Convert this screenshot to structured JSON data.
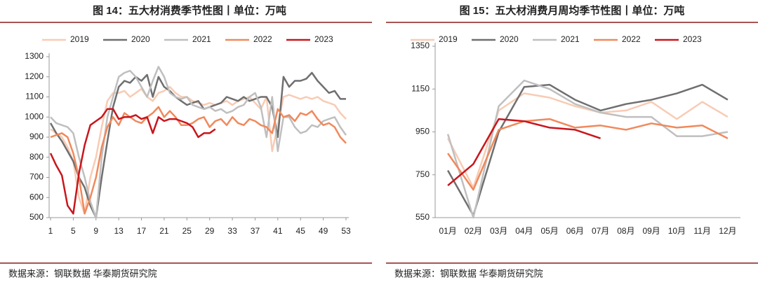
{
  "chart_data": [
    {
      "type": "line",
      "title": "图 14：五大材消费季节性图丨单位：万吨",
      "source": "数据来源：钢联数据 华泰期货研究院",
      "x": [
        1,
        2,
        3,
        4,
        5,
        6,
        7,
        8,
        9,
        10,
        11,
        12,
        13,
        14,
        15,
        16,
        17,
        18,
        19,
        20,
        21,
        22,
        23,
        24,
        25,
        26,
        27,
        28,
        29,
        30,
        31,
        32,
        33,
        34,
        35,
        36,
        37,
        38,
        39,
        40,
        41,
        42,
        43,
        44,
        45,
        46,
        47,
        48,
        49,
        50,
        51,
        52,
        53
      ],
      "xlim": [
        1,
        53
      ],
      "xticks": [
        1,
        5,
        9,
        13,
        17,
        21,
        25,
        29,
        33,
        37,
        41,
        45,
        49,
        53
      ],
      "ylim": [
        500,
        1300
      ],
      "yticks": [
        500,
        600,
        700,
        800,
        900,
        1000,
        1100,
        1200,
        1300
      ],
      "series": [
        {
          "name": "2019",
          "color": "#f8cbb4",
          "values": [
            940,
            920,
            900,
            850,
            780,
            600,
            520,
            700,
            800,
            950,
            1080,
            1120,
            1120,
            1130,
            1100,
            1120,
            1140,
            1100,
            1080,
            1120,
            1130,
            1150,
            1120,
            1100,
            1100,
            1080,
            1070,
            1060,
            1070,
            1060,
            1070,
            1080,
            1060,
            1080,
            1090,
            1100,
            1070,
            1040,
            1100,
            830,
            960,
            1100,
            1110,
            1100,
            1090,
            1100,
            1090,
            1100,
            1080,
            1070,
            1060,
            1020,
            990
          ]
        },
        {
          "name": "2020",
          "color": "#6f6f6f",
          "values": [
            970,
            920,
            880,
            830,
            780,
            700,
            650,
            560,
            500,
            700,
            880,
            1050,
            1150,
            1180,
            1170,
            1200,
            1180,
            1210,
            1100,
            1200,
            1150,
            1130,
            1100,
            1080,
            1060,
            1070,
            1080,
            1040,
            1050,
            1060,
            1070,
            1100,
            1090,
            1080,
            1100,
            1080,
            1090,
            1100,
            1100,
            1050,
            900,
            1200,
            1150,
            1180,
            1180,
            1190,
            1220,
            1180,
            1150,
            1120,
            1130,
            1090,
            1090
          ]
        },
        {
          "name": "2021",
          "color": "#bfbfbf",
          "values": [
            1000,
            970,
            960,
            950,
            920,
            800,
            700,
            580,
            500,
            800,
            1000,
            1100,
            1200,
            1220,
            1230,
            1200,
            1150,
            1100,
            1180,
            1250,
            1200,
            1120,
            1100,
            1090,
            1100,
            1060,
            1050,
            1040,
            1050,
            1030,
            1040,
            1020,
            1030,
            1050,
            1060,
            1100,
            1120,
            1050,
            900,
            1100,
            830,
            1000,
            1000,
            950,
            920,
            930,
            960,
            950,
            980,
            990,
            1000,
            950,
            910
          ]
        },
        {
          "name": "2022",
          "color": "#f0895c",
          "values": [
            900,
            910,
            920,
            900,
            820,
            700,
            520,
            600,
            700,
            850,
            950,
            1000,
            960,
            1020,
            1000,
            980,
            970,
            1000,
            1020,
            1050,
            1000,
            1030,
            1000,
            960,
            960,
            970,
            990,
            1000,
            950,
            980,
            990,
            960,
            1000,
            970,
            960,
            990,
            980,
            960,
            950,
            920,
            1040,
            1000,
            1010,
            980,
            1020,
            1010,
            1030,
            990,
            960,
            970,
            950,
            900,
            870
          ]
        },
        {
          "name": "2023",
          "color": "#c8161d",
          "values": [
            820,
            760,
            710,
            560,
            520,
            720,
            860,
            960,
            980,
            1000,
            1040,
            1040,
            990,
            1000,
            1000,
            1010,
            990,
            1000,
            920,
            1000,
            980,
            990,
            990,
            980,
            970,
            950,
            900,
            920,
            920,
            940,
            null,
            null,
            null,
            null,
            null,
            null,
            null,
            null,
            null,
            null,
            null,
            null,
            null,
            null,
            null,
            null,
            null,
            null,
            null,
            null,
            null,
            null,
            null
          ]
        }
      ]
    },
    {
      "type": "line",
      "title": "图 15：五大材消费月周均季节性图丨单位：万吨",
      "source": "数据来源：钢联数据 华泰期货研究院",
      "categories": [
        "01月",
        "02月",
        "03月",
        "04月",
        "05月",
        "06月",
        "07月",
        "08月",
        "09月",
        "10月",
        "11月",
        "12月"
      ],
      "ylim": [
        550,
        1350
      ],
      "yticks": [
        550,
        750,
        950,
        1150,
        1350
      ],
      "series": [
        {
          "name": "2019",
          "color": "#f8cbb4",
          "values": [
            920,
            690,
            1050,
            1130,
            1110,
            1070,
            1040,
            1050,
            1090,
            1010,
            1090,
            1020
          ]
        },
        {
          "name": "2020",
          "color": "#6f6f6f",
          "values": [
            770,
            560,
            950,
            1160,
            1170,
            1100,
            1050,
            1080,
            1100,
            1130,
            1170,
            1100
          ]
        },
        {
          "name": "2021",
          "color": "#bfbfbf",
          "values": [
            940,
            550,
            1070,
            1190,
            1150,
            1080,
            1040,
            1020,
            1020,
            930,
            930,
            950
          ]
        },
        {
          "name": "2022",
          "color": "#f0895c",
          "values": [
            850,
            680,
            960,
            1000,
            1010,
            970,
            980,
            960,
            990,
            970,
            980,
            920
          ]
        },
        {
          "name": "2023",
          "color": "#c8161d",
          "values": [
            700,
            800,
            1010,
            1000,
            970,
            960,
            920,
            null,
            null,
            null,
            null,
            null
          ]
        }
      ]
    }
  ]
}
